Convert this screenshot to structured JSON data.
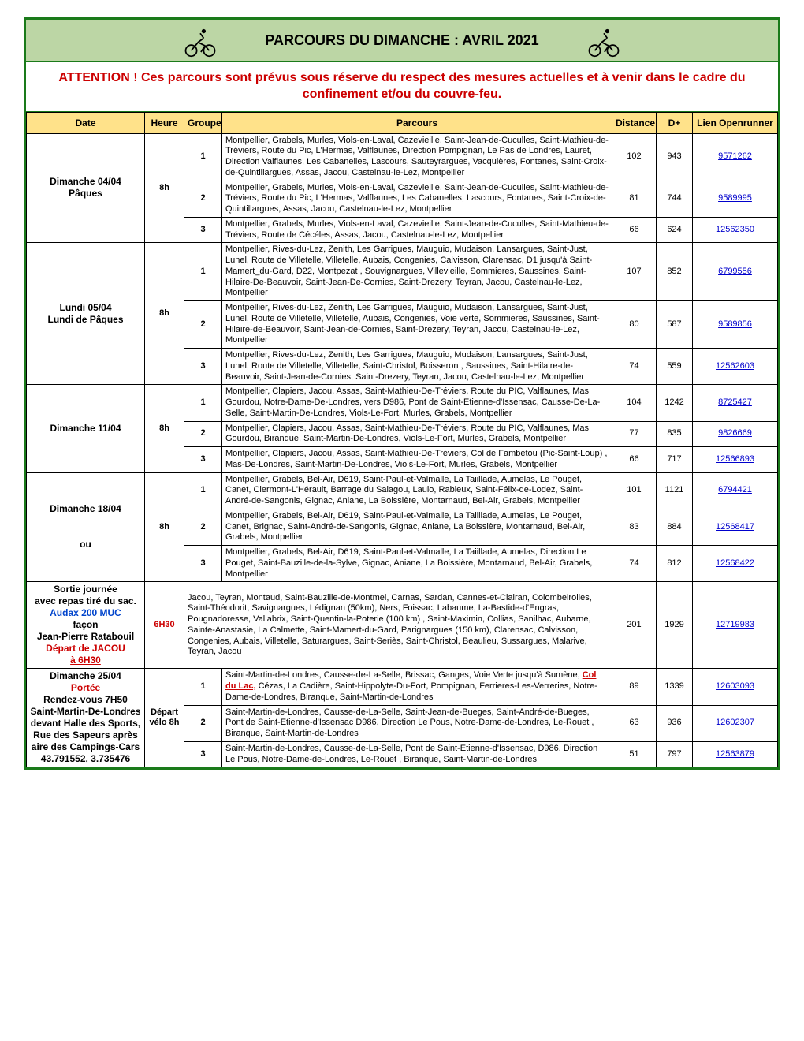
{
  "title": "PARCOURS DU DIMANCHE :  AVRIL 2021",
  "warning": "ATTENTION ! Ces parcours sont prévus sous réserve du respect des mesures actuelles et à venir dans le cadre du confinement et/ou du couvre-feu.",
  "columns": {
    "date": "Date",
    "heure": "Heure",
    "groupe": "Groupe",
    "parcours": "Parcours",
    "distance": "Distance",
    "dplus": "D+",
    "link": "Lien Openrunner"
  },
  "blocks": [
    {
      "date_html": "<b>Dimanche 04/04</b><br><b>Pâques</b>",
      "heure_html": "<b>8h</b>",
      "rows": [
        {
          "groupe": "1",
          "parcours": "Montpellier, Grabels, Murles, Viols-en-Laval, Cazevieille, Saint-Jean-de-Cuculles, Saint-Mathieu-de-Tréviers, Route du Pic, L'Hermas, Valflaunes, Direction Pompignan, Le Pas de Londres, Lauret, Direction Valflaunes, Les Cabanelles, Lascours, Sauteyrargues, Vacquières, Fontanes, Saint-Croix-de-Quintillargues, Assas, Jacou, Castelnau-le-Lez, Montpellier",
          "distance": "102",
          "dplus": "943",
          "link": "9571262"
        },
        {
          "groupe": "2",
          "parcours": "Montpellier, Grabels, Murles, Viols-en-Laval, Cazevieille, Saint-Jean-de-Cuculles, Saint-Mathieu-de-Tréviers, Route du Pic, L'Hermas, Valflaunes, Les Cabanelles, Lascours, Fontanes, Saint-Croix-de-Quintillargues, Assas, Jacou, Castelnau-le-Lez, Montpellier",
          "distance": "81",
          "dplus": "744",
          "link": "9589995"
        },
        {
          "groupe": "3",
          "parcours": "Montpellier, Grabels, Murles, Viols-en-Laval, Cazevieille, Saint-Jean-de-Cuculles, Saint-Mathieu-de-Tréviers, Route de Cécéles,  Assas, Jacou, Castelnau-le-Lez, Montpellier",
          "distance": "66",
          "dplus": "624",
          "link": "12562350"
        }
      ]
    },
    {
      "date_html": "<b>Lundi 05/04</b><br><b>Lundi de Pâques</b>",
      "heure_html": "<b>8h</b>",
      "rows": [
        {
          "groupe": "1",
          "parcours": "Montpellier, Rives-du-Lez, Zenith, Les Garrigues, Mauguio, Mudaison, Lansargues, Saint-Just, Lunel, Route de Villetelle, Villetelle, Aubais, Congenies, Calvisson, Clarensac, D1 jusqu'à Saint-Mamert_du-Gard, D22, Montpezat , Souvignargues, Villevieille, Sommieres, Saussines, Saint-Hilaire-De-Beauvoir, Saint-Jean-De-Cornies, Saint-Drezery, Teyran, Jacou, Castelnau-le-Lez, Montpellier",
          "distance": "107",
          "dplus": "852",
          "link": "6799556"
        },
        {
          "groupe": "2",
          "parcours": "Montpellier, Rives-du-Lez, Zenith, Les Garrigues, Mauguio, Mudaison, Lansargues, Saint-Just, Lunel, Route de Villetelle, Villetelle, Aubais, Congenies,  Voie verte, Sommieres, Saussines, Saint-Hilaire-de-Beauvoir, Saint-Jean-de-Cornies, Saint-Drezery, Teyran, Jacou, Castelnau-le-Lez, Montpellier",
          "distance": "80",
          "dplus": "587",
          "link": "9589856"
        },
        {
          "groupe": "3",
          "parcours": "Montpellier, Rives-du-Lez, Zenith, Les Garrigues, Mauguio, Mudaison, Lansargues, Saint-Just, Lunel, Route de Villetelle, Villetelle, Saint-Christol, Boisseron , Saussines, Saint-Hilaire-de-Beauvoir, Saint-Jean-de-Cornies, Saint-Drezery, Teyran, Jacou, Castelnau-le-Lez, Montpellier",
          "distance": "74",
          "dplus": "559",
          "link": "12562603"
        }
      ]
    },
    {
      "date_html": "<b>Dimanche 11/04</b>",
      "heure_html": "<b>8h</b>",
      "rows": [
        {
          "groupe": "1",
          "parcours": "Montpellier, Clapiers, Jacou, Assas, Saint-Mathieu-De-Tréviers, Route du PIC, Valflaunes, Mas Gourdou, Notre-Dame-De-Londres,  vers D986, Pont de  Saint-Etienne-d'Issensac, Causse-De-La-Selle, Saint-Martin-De-Londres, Viols-Le-Fort, Murles,  Grabels, Montpellier",
          "distance": "104",
          "dplus": "1242",
          "link": "8725427"
        },
        {
          "groupe": "2",
          "parcours": "Montpellier, Clapiers, Jacou, Assas, Saint-Mathieu-De-Tréviers, Route du PIC, Valflaunes, Mas Gourdou, Biranque, Saint-Martin-De-Londres, Viols-Le-Fort, Murles,  Grabels, Montpellier",
          "distance": "77",
          "dplus": "835",
          "link": "9826669"
        },
        {
          "groupe": "3",
          "parcours": "Montpellier, Clapiers, Jacou, Assas, Saint-Mathieu-De-Tréviers, Col de Fambetou (Pic-Saint-Loup) ,  Mas-De-Londres, Saint-Martin-De-Londres, Viols-Le-Fort, Murles,  Grabels, Montpellier",
          "distance": "66",
          "dplus": "717",
          "link": "12566893"
        }
      ]
    },
    {
      "date_html": "<b>Dimanche 18/04</b><br><br><br><b>ou</b>",
      "heure_html": "<b>8h</b>",
      "rows": [
        {
          "groupe": "1",
          "parcours": "Montpellier, Grabels, Bel-Air, D619, Saint-Paul-et-Valmalle, La Taiillade, Aumelas, Le Pouget, Canet, Clermont-L'Hérault, Barrage du Salagou, Laulo, Rabieux, Saint-Félix-de-Lodez, Saint-André-de-Sangonis, Gignac, Aniane, La Boissière, Montarnaud, Bel-Air, Grabels, Montpellier",
          "distance": "101",
          "dplus": "1121",
          "link": "6794421"
        },
        {
          "groupe": "2",
          "parcours": "Montpellier, Grabels, Bel-Air, D619, Saint-Paul-et-Valmalle, La Taiillade, Aumelas, Le Pouget, Canet, Brignac, Saint-André-de-Sangonis, Gignac, Aniane, La Boissière, Montarnaud, Bel-Air, Grabels, Montpellier",
          "distance": "83",
          "dplus": "884",
          "link": "12568417"
        },
        {
          "groupe": "3",
          "parcours": "Montpellier, Grabels, Bel-Air, D619, Saint-Paul-et-Valmalle, La Taiillade, Aumelas, Direction Le Pouget, Saint-Bauzille-de-la-Sylve, Gignac, Aniane, La Boissière, Montarnaud, Bel-Air, Grabels, Montpellier",
          "distance": "74",
          "dplus": "812",
          "link": "12568422"
        }
      ]
    },
    {
      "special": true,
      "date_html": "<b>Sortie journée</b><br><b>avec repas tiré du sac.</b><br><span class='blue-bold'>Audax 200 MUC</span><br><b>façon</b><br><b>Jean-Pierre Ratabouil</b><br><span class='red-bold'>Départ de JACOU</span><br><span class='red-uline'>à 6H30</span>",
      "heure_html": "<span class='red-bold'>6H30</span>",
      "parcours": "Jacou, Teyran, Montaud, Saint-Bauzille-de-Montmel, Carnas, Sardan, Cannes-et-Clairan, Colombeirolles, Saint-Théodorit, Savignargues, Lédignan (50km), Ners, Foissac, Labaume, La-Bastide-d'Engras,  Pougnadoresse, Vallabrix, Saint-Quentin-la-Poterie (100 km) , Saint-Maximin, Collias, Sanilhac, Aubarne, Sainte-Anastasie, La Calmette, Saint-Mamert-du-Gard, Parignargues (150 km), Clarensac, Calvisson, Congenies, Aubais, Villetelle, Saturargues, Saint-Seriès, Saint-Christol, Beaulieu, Sussargues, Malarive, Teyran, Jacou",
      "distance": "201",
      "dplus": "1929",
      "link": "12719983"
    },
    {
      "date_html": "<b>Dimanche 25/04</b><br><span class='red-uline'>Portée</span><br><b>Rendez-vous 7H50</b><br><b>Saint-Martin-De-Londres</b><br><b>devant Halle des Sports,  Rue des Sapeurs après aire des Campings-Cars</b><br><b>43.791552, 3.735476</b>",
      "heure_html": "<b>Départ vélo 8h</b>",
      "rows": [
        {
          "groupe": "1",
          "parcours": "Saint-Martin-de-Londres, Causse-de-La-Selle, Brissac, Ganges, Voie Verte jusqu'à Sumène, <span class='red-uline'>Col du Lac,</span>  Cézas, La Cadière, Saint-Hippolyte-Du-Fort, Pompignan, Ferrieres-Les-Verreries, Notre-Dame-de-Londres, Biranque, Saint-Martin-de-Londres",
          "distance": "89",
          "dplus": "1339",
          "link": "12603093"
        },
        {
          "groupe": "2",
          "parcours": "Saint-Martin-de-Londres, Causse-de-La-Selle, Saint-Jean-de-Bueges, Saint-André-de-Bueges, Pont de  Saint-Etienne-d'Issensac  D986, Direction Le Pous, Notre-Dame-de-Londres, Le-Rouet , Biranque, Saint-Martin-de-Londres",
          "distance": "63",
          "dplus": "936",
          "link": "12602307"
        },
        {
          "groupe": "3",
          "parcours": "Saint-Martin-de-Londres, Causse-de-La-Selle, Pont de  Saint-Etienne-d'Issensac,  D986, Direction Le Pous, Notre-Dame-de-Londres, Le-Rouet , Biranque, Saint-Martin-de-Londres",
          "distance": "51",
          "dplus": "797",
          "link": "12563879"
        }
      ]
    }
  ],
  "colors": {
    "border": "#1a7a1a",
    "title_bg": "#bcd6a5",
    "header_bg": "#ffe28a",
    "warn": "#cc0000",
    "link": "#0000cc"
  }
}
